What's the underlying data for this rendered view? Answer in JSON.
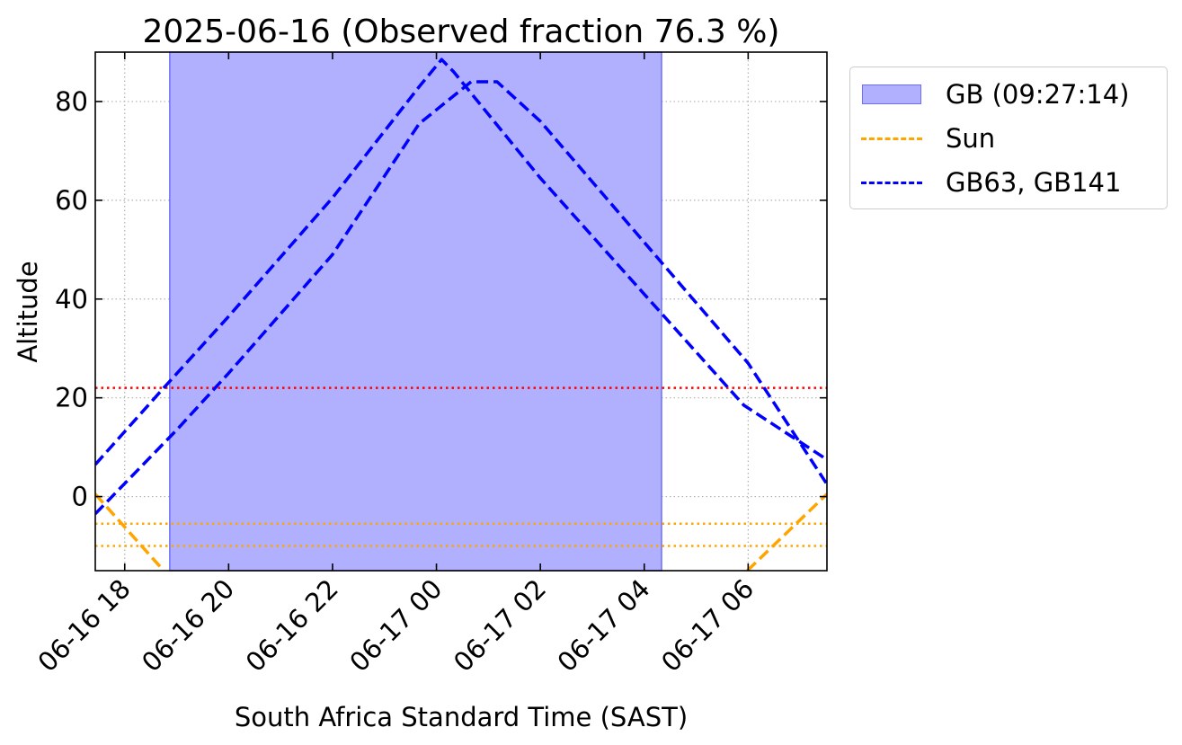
{
  "chart_data": {
    "type": "line",
    "title": "2025-06-16 (Observed fraction 76.3 %)",
    "xlabel": "South Africa Standard Time (SAST)",
    "ylabel": "Altitude",
    "xlim": [
      "2025-06-16T17:26",
      "2025-06-17T07:31"
    ],
    "ylim": [
      -15,
      90
    ],
    "x_ticks": [
      {
        "t": "2025-06-16T18:00",
        "label": "06-16 18"
      },
      {
        "t": "2025-06-16T20:00",
        "label": "06-16 20"
      },
      {
        "t": "2025-06-16T22:00",
        "label": "06-16 22"
      },
      {
        "t": "2025-06-17T00:00",
        "label": "06-17 00"
      },
      {
        "t": "2025-06-17T02:00",
        "label": "06-17 02"
      },
      {
        "t": "2025-06-17T04:00",
        "label": "06-17 04"
      },
      {
        "t": "2025-06-17T06:00",
        "label": "06-17 06"
      }
    ],
    "y_ticks": [
      0,
      20,
      40,
      60,
      80
    ],
    "grid": true,
    "legend_position": "outside-right-top",
    "observed_window": {
      "label": "GB (09:27:14)",
      "start": "2025-06-16T18:52",
      "end": "2025-06-17T04:20",
      "color": "#b0b0ff"
    },
    "horizontal_lines": [
      {
        "y": 22,
        "color": "#ff0000"
      },
      {
        "y": -5.5,
        "color": "#ffa500"
      },
      {
        "y": -10,
        "color": "#ffa500"
      }
    ],
    "series": [
      {
        "name": "Sun",
        "color": "#ffa500",
        "segments": [
          [
            [
              "2025-06-16T17:26",
              0.5
            ],
            [
              "2025-06-16T18:45",
              -15
            ]
          ],
          [
            [
              "2025-06-17T05:59",
              -15
            ],
            [
              "2025-06-17T07:31",
              0.5
            ]
          ]
        ]
      },
      {
        "name": "GB63, GB141",
        "color": "#0000ff",
        "segments": [
          [
            [
              "2025-06-16T17:26",
              6.5
            ],
            [
              "2025-06-16T18:45",
              22
            ],
            [
              "2025-06-16T20:00",
              36.5
            ],
            [
              "2025-06-16T22:00",
              60.5
            ],
            [
              "2025-06-16T23:40",
              83
            ],
            [
              "2025-06-17T00:06",
              88.5
            ],
            [
              "2025-06-17T00:20",
              86
            ],
            [
              "2025-06-17T02:00",
              64.5
            ],
            [
              "2025-06-17T04:00",
              41
            ],
            [
              "2025-06-17T05:55",
              18.5
            ],
            [
              "2025-06-17T07:31",
              7.5
            ]
          ],
          [
            [
              "2025-06-16T17:26",
              -3.5
            ],
            [
              "2025-06-16T19:00",
              13.5
            ],
            [
              "2025-06-16T20:00",
              25
            ],
            [
              "2025-06-16T22:00",
              49
            ],
            [
              "2025-06-16T23:40",
              75.5
            ],
            [
              "2025-06-17T00:40",
              84
            ],
            [
              "2025-06-17T01:10",
              84
            ],
            [
              "2025-06-17T02:00",
              76
            ],
            [
              "2025-06-17T04:00",
              51.5
            ],
            [
              "2025-06-17T06:00",
              27
            ],
            [
              "2025-06-17T07:31",
              2.5
            ]
          ]
        ]
      }
    ],
    "legend": [
      {
        "label": "GB (09:27:14)",
        "kind": "patch",
        "color": "#b0b0ff",
        "edge": "#6f6fff"
      },
      {
        "label": "Sun",
        "kind": "dashed-line",
        "color": "#ffa500"
      },
      {
        "label": "GB63, GB141",
        "kind": "dashed-line",
        "color": "#0000ff"
      }
    ]
  }
}
